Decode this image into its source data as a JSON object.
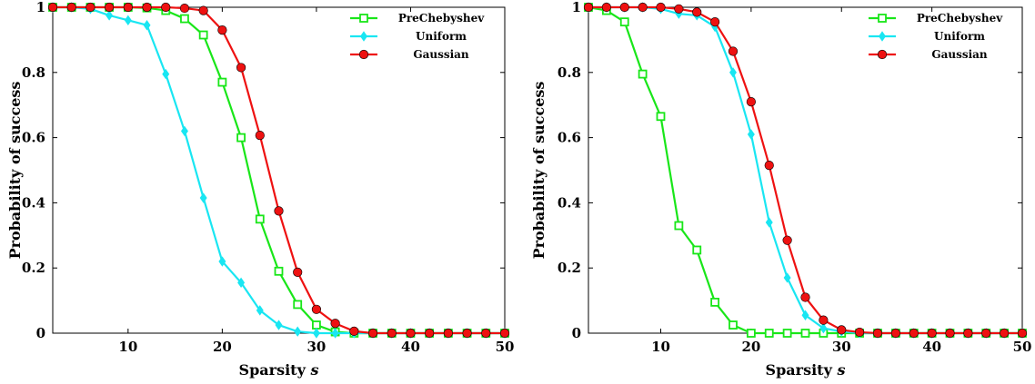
{
  "colors": {
    "PreChebyshev": "#19e619",
    "Uniform": "#19e6f2",
    "Gaussian": "#ee1111"
  },
  "chart_data": [
    {
      "type": "line",
      "xlabel": "Sparsity s",
      "ylabel": "Probability of success",
      "xlim": [
        2,
        50
      ],
      "ylim": [
        0,
        1
      ],
      "xticks": [
        10,
        20,
        30,
        40,
        50
      ],
      "yticks": [
        0,
        0.2,
        0.4,
        0.6,
        0.8,
        1
      ],
      "grid": false,
      "legend": "top-right",
      "x": [
        2,
        4,
        6,
        8,
        10,
        12,
        14,
        16,
        18,
        20,
        22,
        24,
        26,
        28,
        30,
        32,
        34,
        36,
        38,
        40,
        42,
        44,
        46,
        48,
        50
      ],
      "series": [
        {
          "name": "PreChebyshev",
          "marker": "square-open",
          "values": [
            1,
            1,
            1,
            1,
            1,
            0.998,
            0.99,
            0.965,
            0.915,
            0.77,
            0.6,
            0.35,
            0.19,
            0.088,
            0.025,
            0.004,
            0,
            0,
            0,
            0,
            0,
            0,
            0,
            0,
            0
          ]
        },
        {
          "name": "Uniform",
          "marker": "diamond",
          "values": [
            1,
            1,
            0.995,
            0.975,
            0.96,
            0.945,
            0.795,
            0.62,
            0.415,
            0.22,
            0.155,
            0.07,
            0.025,
            0.005,
            0,
            0,
            0,
            0,
            0,
            0,
            0,
            0,
            0,
            0,
            0
          ]
        },
        {
          "name": "Gaussian",
          "marker": "circle",
          "values": [
            1,
            1,
            1,
            1,
            1,
            1,
            1,
            0.997,
            0.99,
            0.93,
            0.815,
            0.607,
            0.375,
            0.187,
            0.073,
            0.03,
            0.006,
            0,
            0,
            0,
            0,
            0,
            0,
            0,
            0
          ]
        }
      ]
    },
    {
      "type": "line",
      "xlabel": "Sparsity s",
      "ylabel": "Probability of success",
      "xlim": [
        2,
        50
      ],
      "ylim": [
        0,
        1
      ],
      "xticks": [
        10,
        20,
        30,
        40,
        50
      ],
      "yticks": [
        0,
        0.2,
        0.4,
        0.6,
        0.8,
        1
      ],
      "grid": false,
      "legend": "top-right",
      "x": [
        2,
        4,
        6,
        8,
        10,
        12,
        14,
        16,
        18,
        20,
        22,
        24,
        26,
        28,
        30,
        32,
        34,
        36,
        38,
        40,
        42,
        44,
        46,
        48,
        50
      ],
      "series": [
        {
          "name": "PreChebyshev",
          "marker": "square-open",
          "values": [
            1,
            0.99,
            0.955,
            0.795,
            0.665,
            0.33,
            0.255,
            0.095,
            0.025,
            0,
            0,
            0,
            0,
            0,
            0,
            0,
            0,
            0,
            0,
            0,
            0,
            0,
            0,
            0,
            0
          ]
        },
        {
          "name": "Uniform",
          "marker": "diamond",
          "values": [
            1,
            1,
            1,
            1,
            0.995,
            0.98,
            0.975,
            0.94,
            0.8,
            0.61,
            0.34,
            0.17,
            0.055,
            0.015,
            0.005,
            0,
            0,
            0,
            0,
            0,
            0,
            0,
            0,
            0,
            0
          ]
        },
        {
          "name": "Gaussian",
          "marker": "circle",
          "values": [
            1,
            1,
            1,
            1,
            1,
            0.995,
            0.985,
            0.955,
            0.865,
            0.71,
            0.515,
            0.285,
            0.11,
            0.04,
            0.01,
            0.003,
            0,
            0,
            0,
            0,
            0,
            0,
            0,
            0,
            0
          ]
        }
      ]
    }
  ]
}
